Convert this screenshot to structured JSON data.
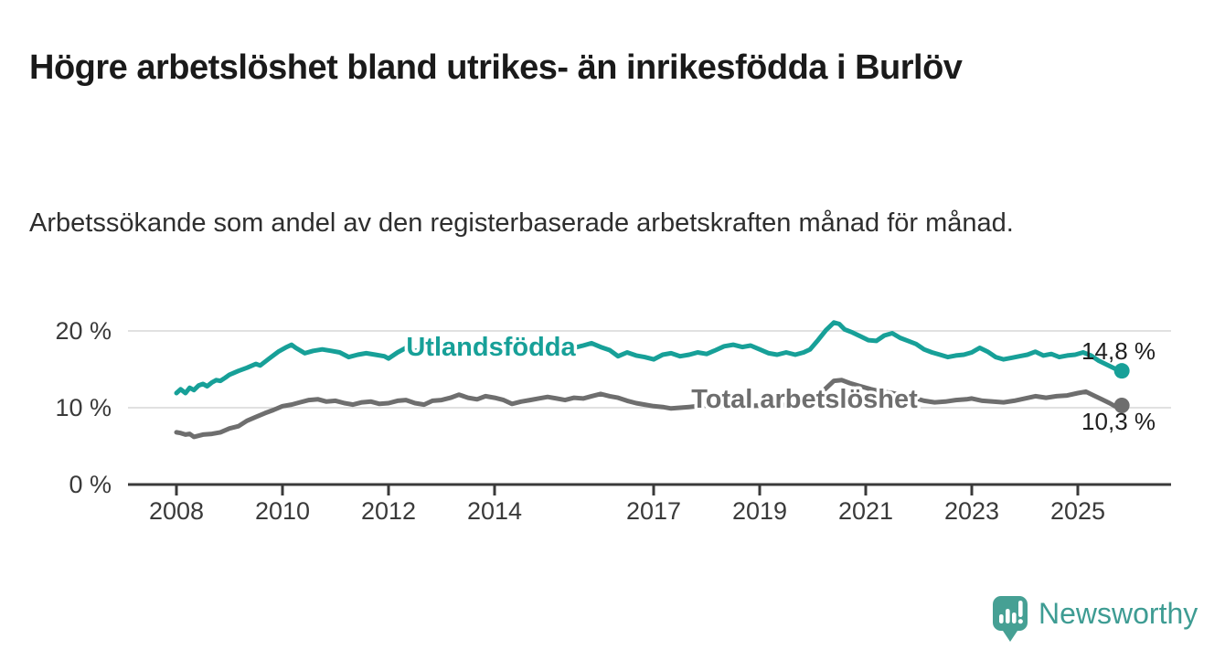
{
  "header": {
    "title": "Högre arbetslöshet bland utrikes- än inrikesfödda i Burlöv",
    "subtitle": "Arbetssökande som andel av den registerbaserade arbetskraften månad för månad."
  },
  "branding": {
    "logo_text": "Newsworthy",
    "logo_icon": "newsworthy-pin-bar-chart-icon",
    "brand_color": "#3E9C93"
  },
  "chart_data": {
    "type": "line",
    "title": "Högre arbetslöshet bland utrikes- än inrikesfödda i Burlöv",
    "subtitle": "Arbetssökande som andel av den registerbaserade arbetskraften månad för månad.",
    "unit": "percent",
    "grid": "horizontal",
    "legend_position": "inline-labels-on-lines",
    "x_axis": {
      "label": "",
      "tick_years": [
        2008,
        2010,
        2012,
        2014,
        2017,
        2019,
        2021,
        2023,
        2025
      ],
      "tick_labels": [
        "2008",
        "2010",
        "2012",
        "2014",
        "2017",
        "2019",
        "2021",
        "2023",
        "2025"
      ],
      "range": [
        2008,
        2026.2
      ]
    },
    "y_axis": {
      "label": "",
      "tick_values": [
        0,
        10,
        20
      ],
      "tick_labels": [
        "0 %",
        "10 %",
        "20 %"
      ],
      "grid_values": [
        10,
        20
      ],
      "range": [
        0,
        22.5
      ]
    },
    "series": [
      {
        "name": "Utlandsfödda",
        "color": "#17A098",
        "end_value": 14.8,
        "end_label": "14,8 %",
        "points": [
          [
            2008.0,
            11.9
          ],
          [
            2008.08,
            12.4
          ],
          [
            2008.17,
            11.9
          ],
          [
            2008.25,
            12.6
          ],
          [
            2008.33,
            12.3
          ],
          [
            2008.42,
            12.9
          ],
          [
            2008.5,
            13.1
          ],
          [
            2008.58,
            12.8
          ],
          [
            2008.67,
            13.3
          ],
          [
            2008.75,
            13.6
          ],
          [
            2008.83,
            13.5
          ],
          [
            2008.92,
            13.9
          ],
          [
            2009.0,
            14.3
          ],
          [
            2009.17,
            14.8
          ],
          [
            2009.33,
            15.2
          ],
          [
            2009.5,
            15.7
          ],
          [
            2009.58,
            15.5
          ],
          [
            2009.75,
            16.4
          ],
          [
            2009.92,
            17.3
          ],
          [
            2010.08,
            17.9
          ],
          [
            2010.17,
            18.2
          ],
          [
            2010.25,
            17.8
          ],
          [
            2010.42,
            17.1
          ],
          [
            2010.58,
            17.4
          ],
          [
            2010.75,
            17.6
          ],
          [
            2010.92,
            17.4
          ],
          [
            2011.08,
            17.2
          ],
          [
            2011.25,
            16.6
          ],
          [
            2011.42,
            16.9
          ],
          [
            2011.58,
            17.1
          ],
          [
            2011.75,
            16.9
          ],
          [
            2011.92,
            16.7
          ],
          [
            2012.0,
            16.4
          ],
          [
            2012.17,
            17.2
          ],
          [
            2012.33,
            17.8
          ],
          [
            2012.5,
            17.4
          ],
          [
            2012.67,
            17.6
          ],
          [
            2012.83,
            17.4
          ],
          [
            2013.0,
            17.7
          ],
          [
            2013.17,
            18.0
          ],
          [
            2013.33,
            18.2
          ],
          [
            2013.5,
            18.6
          ],
          [
            2013.67,
            18.0
          ],
          [
            2013.83,
            18.3
          ],
          [
            2014.0,
            17.8
          ],
          [
            2014.17,
            17.5
          ],
          [
            2014.33,
            17.2
          ],
          [
            2014.5,
            17.4
          ],
          [
            2014.67,
            17.1
          ],
          [
            2014.83,
            17.3
          ],
          [
            2015.0,
            17.2
          ],
          [
            2015.17,
            17.5
          ],
          [
            2015.33,
            17.3
          ],
          [
            2015.5,
            17.8
          ],
          [
            2015.67,
            18.1
          ],
          [
            2015.83,
            18.4
          ],
          [
            2016.0,
            17.9
          ],
          [
            2016.17,
            17.5
          ],
          [
            2016.33,
            16.7
          ],
          [
            2016.5,
            17.2
          ],
          [
            2016.67,
            16.8
          ],
          [
            2016.83,
            16.6
          ],
          [
            2017.0,
            16.3
          ],
          [
            2017.17,
            16.9
          ],
          [
            2017.33,
            17.1
          ],
          [
            2017.5,
            16.7
          ],
          [
            2017.67,
            16.9
          ],
          [
            2017.83,
            17.2
          ],
          [
            2018.0,
            17.0
          ],
          [
            2018.17,
            17.5
          ],
          [
            2018.33,
            18.0
          ],
          [
            2018.5,
            18.2
          ],
          [
            2018.67,
            17.9
          ],
          [
            2018.83,
            18.1
          ],
          [
            2019.0,
            17.6
          ],
          [
            2019.17,
            17.1
          ],
          [
            2019.33,
            16.9
          ],
          [
            2019.5,
            17.2
          ],
          [
            2019.67,
            16.9
          ],
          [
            2019.83,
            17.2
          ],
          [
            2019.95,
            17.6
          ],
          [
            2020.1,
            18.8
          ],
          [
            2020.25,
            20.1
          ],
          [
            2020.4,
            21.1
          ],
          [
            2020.5,
            20.9
          ],
          [
            2020.6,
            20.2
          ],
          [
            2020.75,
            19.8
          ],
          [
            2020.9,
            19.3
          ],
          [
            2021.05,
            18.8
          ],
          [
            2021.2,
            18.7
          ],
          [
            2021.35,
            19.4
          ],
          [
            2021.5,
            19.7
          ],
          [
            2021.65,
            19.1
          ],
          [
            2021.8,
            18.7
          ],
          [
            2021.95,
            18.3
          ],
          [
            2022.1,
            17.6
          ],
          [
            2022.25,
            17.2
          ],
          [
            2022.4,
            16.9
          ],
          [
            2022.55,
            16.6
          ],
          [
            2022.7,
            16.8
          ],
          [
            2022.85,
            16.9
          ],
          [
            2023.0,
            17.2
          ],
          [
            2023.15,
            17.8
          ],
          [
            2023.3,
            17.3
          ],
          [
            2023.45,
            16.6
          ],
          [
            2023.6,
            16.3
          ],
          [
            2023.75,
            16.5
          ],
          [
            2023.9,
            16.7
          ],
          [
            2024.05,
            16.9
          ],
          [
            2024.2,
            17.3
          ],
          [
            2024.35,
            16.8
          ],
          [
            2024.5,
            17.0
          ],
          [
            2024.65,
            16.6
          ],
          [
            2024.8,
            16.8
          ],
          [
            2024.95,
            16.9
          ],
          [
            2025.1,
            17.2
          ],
          [
            2025.25,
            16.8
          ],
          [
            2025.4,
            16.1
          ],
          [
            2025.55,
            15.6
          ],
          [
            2025.7,
            15.1
          ],
          [
            2025.83,
            14.8
          ]
        ]
      },
      {
        "name": "Total arbetslöshet",
        "color": "#6E6E6E",
        "end_value": 10.3,
        "end_label": "10,3 %",
        "points": [
          [
            2008.0,
            6.8
          ],
          [
            2008.08,
            6.7
          ],
          [
            2008.17,
            6.5
          ],
          [
            2008.25,
            6.6
          ],
          [
            2008.33,
            6.2
          ],
          [
            2008.5,
            6.5
          ],
          [
            2008.67,
            6.6
          ],
          [
            2008.83,
            6.8
          ],
          [
            2009.0,
            7.3
          ],
          [
            2009.17,
            7.6
          ],
          [
            2009.33,
            8.3
          ],
          [
            2009.5,
            8.8
          ],
          [
            2009.67,
            9.3
          ],
          [
            2009.83,
            9.7
          ],
          [
            2010.0,
            10.2
          ],
          [
            2010.17,
            10.4
          ],
          [
            2010.33,
            10.7
          ],
          [
            2010.5,
            11.0
          ],
          [
            2010.67,
            11.1
          ],
          [
            2010.83,
            10.8
          ],
          [
            2011.0,
            10.9
          ],
          [
            2011.17,
            10.6
          ],
          [
            2011.33,
            10.4
          ],
          [
            2011.5,
            10.7
          ],
          [
            2011.67,
            10.8
          ],
          [
            2011.83,
            10.5
          ],
          [
            2012.0,
            10.6
          ],
          [
            2012.17,
            10.9
          ],
          [
            2012.33,
            11.0
          ],
          [
            2012.5,
            10.6
          ],
          [
            2012.67,
            10.4
          ],
          [
            2012.83,
            10.9
          ],
          [
            2013.0,
            11.0
          ],
          [
            2013.17,
            11.3
          ],
          [
            2013.33,
            11.7
          ],
          [
            2013.5,
            11.3
          ],
          [
            2013.67,
            11.1
          ],
          [
            2013.83,
            11.5
          ],
          [
            2014.0,
            11.3
          ],
          [
            2014.17,
            11.0
          ],
          [
            2014.33,
            10.5
          ],
          [
            2014.5,
            10.8
          ],
          [
            2014.67,
            11.0
          ],
          [
            2014.83,
            11.2
          ],
          [
            2015.0,
            11.4
          ],
          [
            2015.17,
            11.2
          ],
          [
            2015.33,
            11.0
          ],
          [
            2015.5,
            11.3
          ],
          [
            2015.67,
            11.2
          ],
          [
            2015.83,
            11.5
          ],
          [
            2016.0,
            11.8
          ],
          [
            2016.17,
            11.5
          ],
          [
            2016.33,
            11.3
          ],
          [
            2016.5,
            10.9
          ],
          [
            2016.67,
            10.6
          ],
          [
            2016.83,
            10.4
          ],
          [
            2017.0,
            10.2
          ],
          [
            2017.17,
            10.1
          ],
          [
            2017.33,
            9.9
          ],
          [
            2017.5,
            10.0
          ],
          [
            2017.67,
            10.1
          ],
          [
            2017.83,
            10.2
          ],
          [
            2018.0,
            10.3
          ],
          [
            2018.25,
            10.2
          ],
          [
            2018.5,
            10.3
          ],
          [
            2018.75,
            10.2
          ],
          [
            2019.0,
            10.3
          ],
          [
            2019.25,
            10.2
          ],
          [
            2019.5,
            10.4
          ],
          [
            2019.75,
            10.5
          ],
          [
            2020.0,
            10.9
          ],
          [
            2020.2,
            12.2
          ],
          [
            2020.4,
            13.5
          ],
          [
            2020.55,
            13.6
          ],
          [
            2020.7,
            13.2
          ],
          [
            2020.9,
            12.8
          ],
          [
            2021.1,
            12.4
          ],
          [
            2021.3,
            12.1
          ],
          [
            2021.5,
            11.9
          ],
          [
            2021.7,
            11.6
          ],
          [
            2021.9,
            11.3
          ],
          [
            2022.1,
            10.9
          ],
          [
            2022.3,
            10.7
          ],
          [
            2022.5,
            10.8
          ],
          [
            2022.7,
            11.0
          ],
          [
            2022.9,
            11.1
          ],
          [
            2023.0,
            11.2
          ],
          [
            2023.2,
            10.9
          ],
          [
            2023.4,
            10.8
          ],
          [
            2023.6,
            10.7
          ],
          [
            2023.8,
            10.9
          ],
          [
            2024.0,
            11.2
          ],
          [
            2024.2,
            11.5
          ],
          [
            2024.4,
            11.3
          ],
          [
            2024.6,
            11.5
          ],
          [
            2024.8,
            11.6
          ],
          [
            2025.0,
            11.9
          ],
          [
            2025.15,
            12.1
          ],
          [
            2025.3,
            11.6
          ],
          [
            2025.45,
            11.1
          ],
          [
            2025.6,
            10.6
          ],
          [
            2025.7,
            10.2
          ],
          [
            2025.83,
            10.3
          ]
        ]
      }
    ]
  }
}
